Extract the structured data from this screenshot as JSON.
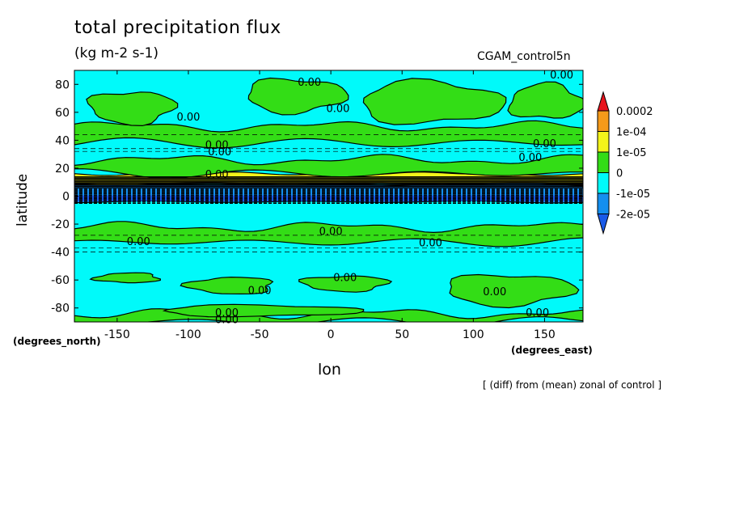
{
  "chart_data": {
    "type": "heatmap",
    "title": "total precipitation flux",
    "units": "(kg m-2 s-1)",
    "dataset": "CGAM_control5n",
    "xlabel": "lon",
    "x_units": "(degrees_east)",
    "ylabel": "latitude",
    "y_units": "(degrees_north)",
    "annotation": "[ (diff) from (mean) zonal of control ]",
    "xlim": [
      -180,
      177
    ],
    "ylim": [
      -90,
      90
    ],
    "x_ticks": [
      -150,
      -100,
      -50,
      0,
      50,
      100,
      150
    ],
    "x_tick_labels": [
      "-150",
      "-100",
      "-50",
      "0",
      "50",
      "100",
      "150"
    ],
    "y_ticks": [
      -80,
      -60,
      -40,
      -20,
      0,
      20,
      40,
      60,
      80
    ],
    "y_tick_labels": [
      "-80",
      "-60",
      "-40",
      "-20",
      "0",
      "20",
      "40",
      "60",
      "80"
    ],
    "colorbar": {
      "levels": [
        "0.0002",
        "1e-04",
        "1e-05",
        "0",
        "-1e-05",
        "-2e-05"
      ],
      "colors": [
        "#e8131c",
        "#f59a1a",
        "#f3f31a",
        "#33dd16",
        "#00fafa",
        "#148fef",
        "#1a5ae8"
      ]
    },
    "background_value_color": "#00fafa",
    "zonal_bands": [
      {
        "lat_min": -90,
        "lat_max": -84,
        "category": "0 to 1e-05"
      },
      {
        "lat_min": -33,
        "lat_max": -22,
        "category": "0 to 1e-05"
      },
      {
        "lat_min": -4,
        "lat_max": 9,
        "category": "-1e-05 to -2e-05"
      },
      {
        "lat_min": 9,
        "lat_max": 16,
        "category": "1e-05 to 1e-04"
      },
      {
        "lat_min": 16,
        "lat_max": 26,
        "category": "0 to 1e-05"
      },
      {
        "lat_min": 38,
        "lat_max": 50,
        "category": "0 to 1e-05"
      }
    ],
    "contour_labels": [
      {
        "text": "0.00",
        "lon": -135,
        "lat": -32
      },
      {
        "text": "0.00",
        "lon": -80,
        "lat": 37
      },
      {
        "text": "0.00",
        "lon": -78,
        "lat": 32
      },
      {
        "text": "0.00",
        "lon": -80,
        "lat": 16
      },
      {
        "text": "0.00",
        "lon": -100,
        "lat": 57
      },
      {
        "text": "0.00",
        "lon": -15,
        "lat": 82
      },
      {
        "text": "0.00",
        "lon": 5,
        "lat": 63
      },
      {
        "text": "0.00",
        "lon": 0,
        "lat": -25
      },
      {
        "text": "0.00",
        "lon": 10,
        "lat": -58
      },
      {
        "text": "0.00",
        "lon": -50,
        "lat": -67
      },
      {
        "text": "0.00",
        "lon": 70,
        "lat": -33
      },
      {
        "text": "0.00",
        "lon": 115,
        "lat": -68
      },
      {
        "text": "0.00",
        "lon": 145,
        "lat": -83
      },
      {
        "text": "0.00",
        "lon": 140,
        "lat": 28
      },
      {
        "text": "0.00",
        "lon": 150,
        "lat": 38
      },
      {
        "text": "0.00",
        "lon": 162,
        "lat": 87
      },
      {
        "text": "0.00",
        "lon": -73,
        "lat": -83
      },
      {
        "text": "0.00",
        "lon": -73,
        "lat": -88
      }
    ]
  }
}
